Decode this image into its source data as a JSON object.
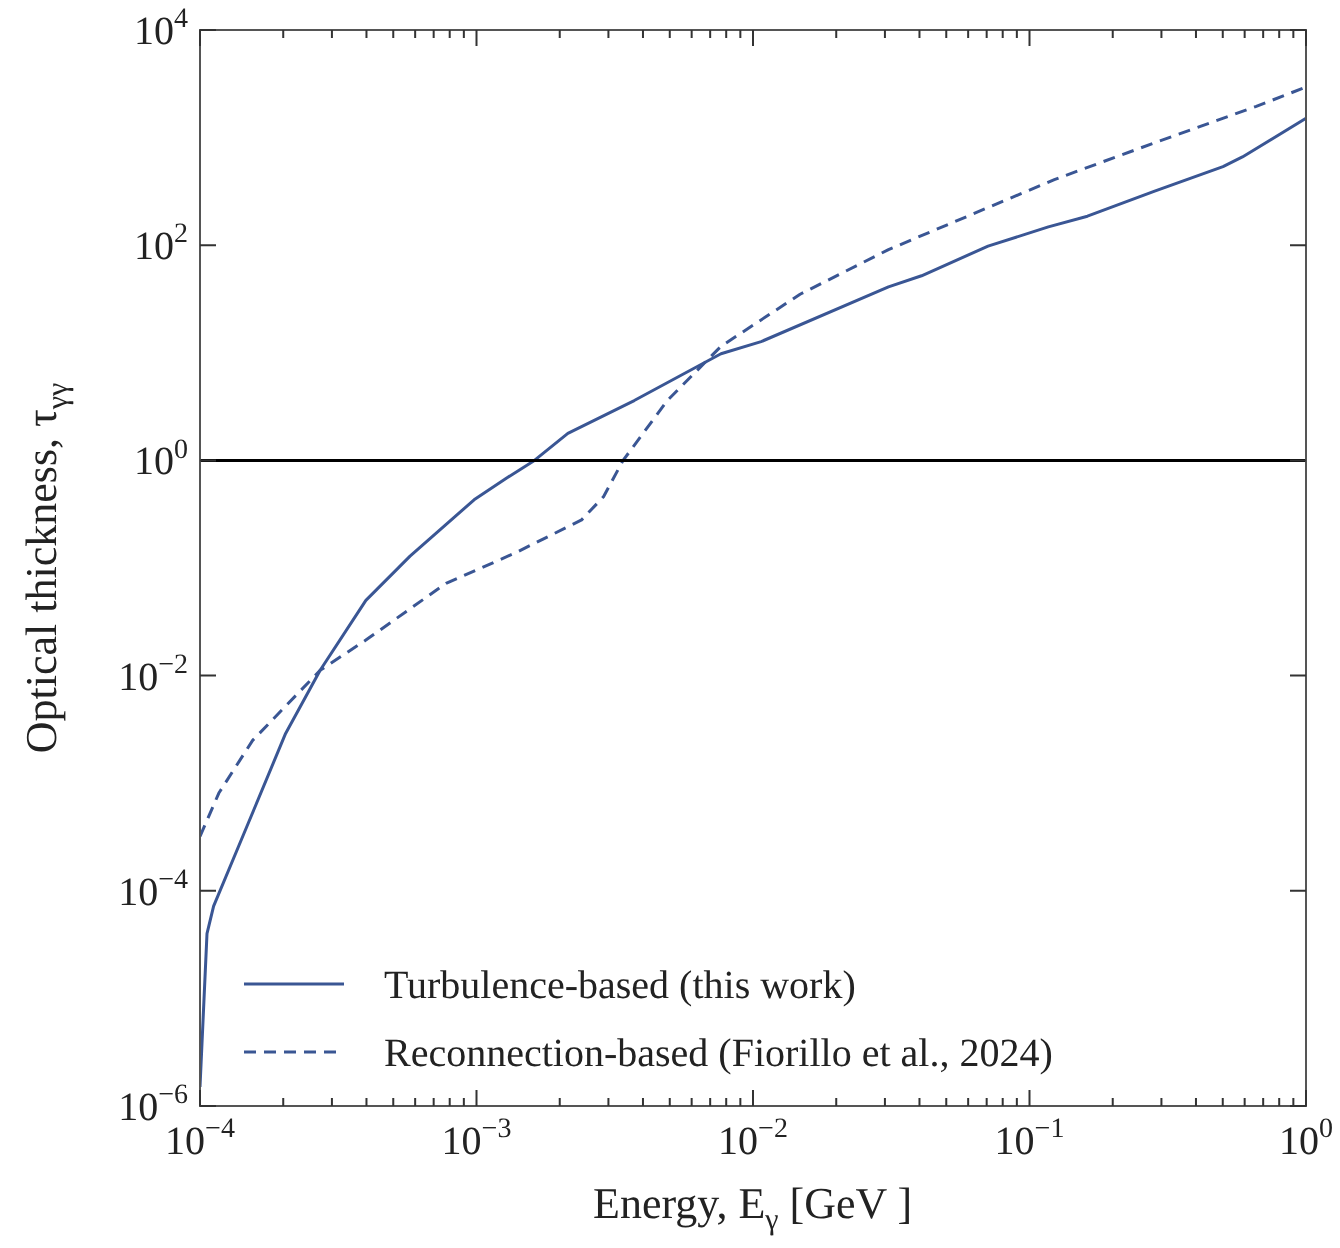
{
  "chart_data": {
    "type": "line",
    "xlabel": "Energy, E$_{γ}$ [GeV ]",
    "ylabel": "Optical thickness, τ$_{γγ}$",
    "log": "xy",
    "grid": false,
    "legend": "bottom left",
    "marker": "none",
    "xlim": [
      0.0001,
      1
    ],
    "ylim": [
      1e-06,
      10000
    ],
    "xticks": [
      {
        "value": 0.0001,
        "label": "10$^{−4}$"
      },
      {
        "value": 0.001,
        "label": "10$^{−3}$"
      },
      {
        "value": 0.01,
        "label": "10$^{−2}$"
      },
      {
        "value": 0.1,
        "label": "10$^{−1}$"
      },
      {
        "value": 1,
        "label": "10$^{0}$"
      }
    ],
    "yticks": [
      {
        "value": 1e-06,
        "label": "10$^{−6}$"
      },
      {
        "value": 0.0001,
        "label": "10$^{−4}$"
      },
      {
        "value": 0.01,
        "label": "10$^{−2}$"
      },
      {
        "value": 1,
        "label": "10$^{0}$"
      },
      {
        "value": 100,
        "label": "10$^{2}$"
      },
      {
        "value": 10000,
        "label": "10$^{4}$"
      }
    ],
    "ref_lines": [
      {
        "axis": "y",
        "value": 1,
        "color": "#000000"
      }
    ],
    "series": [
      {
        "name": "Turbulence-based (this work)",
        "color": "#3a5694",
        "line_style": "solid",
        "x": [
          0.0001,
          0.000106,
          0.000112,
          0.000148,
          0.000204,
          0.000272,
          0.000398,
          0.000575,
          0.00098,
          0.00129,
          0.00162,
          0.00214,
          0.00372,
          0.00766,
          0.0107,
          0.0309,
          0.0407,
          0.0708,
          0.117,
          0.162,
          0.282,
          0.501,
          0.589,
          1
        ],
        "values": [
          1.5e-06,
          4e-05,
          7.2e-05,
          0.0004,
          0.0029,
          0.0112,
          0.05,
          0.129,
          0.43,
          0.69,
          1.0,
          1.78,
          3.6,
          9.8,
          12.7,
          41,
          52,
          98,
          148,
          186,
          316,
          537,
          661,
          1510
        ]
      },
      {
        "name": "Reconnection-based (Fiorillo et al., 2024)",
        "color": "#3a5694",
        "line_style": "dashed",
        "x": [
          0.0001,
          0.000117,
          0.000155,
          0.000272,
          0.000398,
          0.000776,
          0.00138,
          0.0024,
          0.00288,
          0.00339,
          0.0049,
          0.00766,
          0.0148,
          0.0309,
          0.123,
          0.282,
          0.661,
          1
        ],
        "values": [
          0.00032,
          0.00081,
          0.0025,
          0.0112,
          0.0214,
          0.072,
          0.138,
          0.28,
          0.46,
          1.0,
          3.6,
          11.5,
          35,
          91,
          407,
          891,
          1950,
          2950
        ]
      }
    ]
  }
}
